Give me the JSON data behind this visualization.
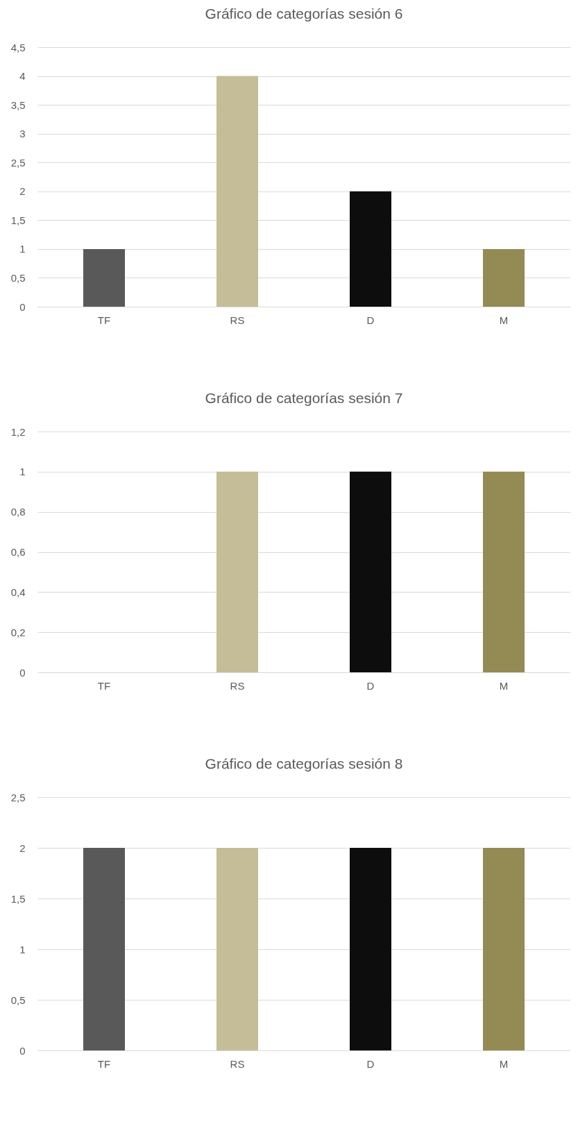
{
  "chart_data": [
    {
      "type": "bar",
      "title": "Gráfico de categorías sesión 6",
      "categories": [
        "TF",
        "RS",
        "D",
        "M"
      ],
      "values": [
        1,
        4,
        2,
        1
      ],
      "colors": [
        "#595959",
        "#c4bd97",
        "#0d0d0d",
        "#948a54"
      ],
      "ylim": [
        0,
        4.5
      ],
      "yticks": [
        0,
        {
          "value": 0.5,
          "label": "0,5"
        },
        1,
        {
          "value": 1.5,
          "label": "1,5"
        },
        2,
        {
          "value": 2.5,
          "label": "2,5"
        },
        3,
        {
          "value": 3.5,
          "label": "3,5"
        },
        4,
        {
          "value": 4.5,
          "label": "4,5"
        }
      ],
      "grid": "y"
    },
    {
      "type": "bar",
      "title": "Gráfico de categorías sesión 7",
      "categories": [
        "TF",
        "RS",
        "D",
        "M"
      ],
      "values": [
        0,
        1,
        1,
        1
      ],
      "colors": [
        "#595959",
        "#c4bd97",
        "#0d0d0d",
        "#948a54"
      ],
      "ylim": [
        0,
        1.2
      ],
      "yticks": [
        0,
        {
          "value": 0.2,
          "label": "0,2"
        },
        {
          "value": 0.4,
          "label": "0,4"
        },
        {
          "value": 0.6,
          "label": "0,6"
        },
        {
          "value": 0.8,
          "label": "0,8"
        },
        1,
        {
          "value": 1.2,
          "label": "1,2"
        }
      ],
      "grid": "y"
    },
    {
      "type": "bar",
      "title": "Gráfico de categorías sesión 8",
      "categories": [
        "TF",
        "RS",
        "D",
        "M"
      ],
      "values": [
        2,
        2,
        2,
        2
      ],
      "colors": [
        "#595959",
        "#c4bd97",
        "#0d0d0d",
        "#948a54"
      ],
      "ylim": [
        0,
        2.5
      ],
      "yticks": [
        0,
        {
          "value": 0.5,
          "label": "0,5"
        },
        1,
        {
          "value": 1.5,
          "label": "1,5"
        },
        2,
        {
          "value": 2.5,
          "label": "2,5"
        }
      ],
      "grid": "y"
    }
  ]
}
